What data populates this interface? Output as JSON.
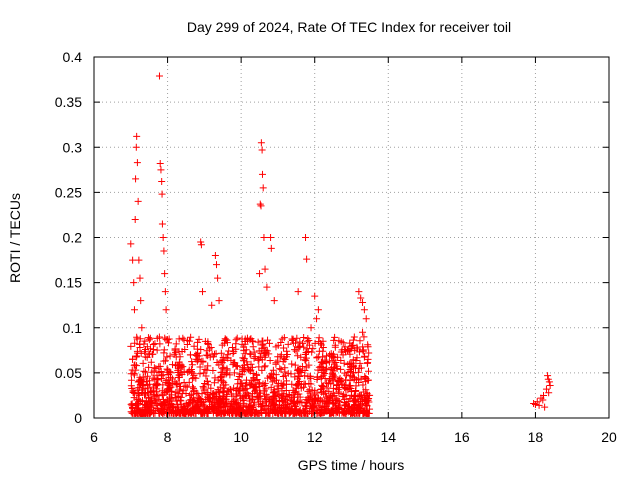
{
  "chart_data": {
    "type": "scatter",
    "title": "Day 299 of 2024, Rate Of TEC Index for receiver toil",
    "xlabel": "GPS time / hours",
    "ylabel": "ROTI / TECUs",
    "xlim": [
      6,
      20
    ],
    "ylim": [
      0,
      0.4
    ],
    "x_ticks": [
      6,
      8,
      10,
      12,
      14,
      16,
      18,
      20
    ],
    "x_tick_labels": [
      "6",
      "8",
      "10",
      "12",
      "14",
      "16",
      "18",
      "20"
    ],
    "y_ticks": [
      0,
      0.05,
      0.1,
      0.15,
      0.2,
      0.25,
      0.3,
      0.35,
      0.4
    ],
    "y_tick_labels": [
      "0",
      "0.05",
      "0.1",
      "0.15",
      "0.2",
      "0.25",
      "0.3",
      "0.35",
      "0.4"
    ],
    "grid": true,
    "marker": "plus",
    "color": "#ff0000",
    "series": [
      {
        "name": "ROTI",
        "points": [
          [
            7.0,
            0.193
          ],
          [
            7.05,
            0.175
          ],
          [
            7.08,
            0.15
          ],
          [
            7.1,
            0.12
          ],
          [
            7.12,
            0.22
          ],
          [
            7.13,
            0.265
          ],
          [
            7.15,
            0.3
          ],
          [
            7.16,
            0.312
          ],
          [
            7.18,
            0.283
          ],
          [
            7.2,
            0.24
          ],
          [
            7.22,
            0.175
          ],
          [
            7.25,
            0.155
          ],
          [
            7.27,
            0.13
          ],
          [
            7.3,
            0.1
          ],
          [
            7.78,
            0.379
          ],
          [
            7.8,
            0.282
          ],
          [
            7.82,
            0.275
          ],
          [
            7.84,
            0.262
          ],
          [
            7.85,
            0.248
          ],
          [
            7.86,
            0.215
          ],
          [
            7.88,
            0.2
          ],
          [
            7.9,
            0.185
          ],
          [
            7.92,
            0.16
          ],
          [
            7.94,
            0.14
          ],
          [
            7.96,
            0.12
          ],
          [
            8.9,
            0.195
          ],
          [
            8.92,
            0.192
          ],
          [
            8.95,
            0.14
          ],
          [
            9.3,
            0.18
          ],
          [
            9.33,
            0.17
          ],
          [
            9.36,
            0.155
          ],
          [
            9.4,
            0.13
          ],
          [
            9.2,
            0.125
          ],
          [
            10.55,
            0.305
          ],
          [
            10.57,
            0.297
          ],
          [
            10.58,
            0.27
          ],
          [
            10.6,
            0.255
          ],
          [
            10.52,
            0.237
          ],
          [
            10.54,
            0.235
          ],
          [
            10.62,
            0.2
          ],
          [
            10.8,
            0.2
          ],
          [
            10.82,
            0.188
          ],
          [
            10.65,
            0.165
          ],
          [
            10.5,
            0.16
          ],
          [
            10.7,
            0.145
          ],
          [
            10.9,
            0.13
          ],
          [
            11.75,
            0.2
          ],
          [
            11.78,
            0.176
          ],
          [
            11.55,
            0.14
          ],
          [
            12.0,
            0.135
          ],
          [
            12.1,
            0.12
          ],
          [
            12.05,
            0.11
          ],
          [
            11.9,
            0.1
          ],
          [
            13.2,
            0.14
          ],
          [
            13.25,
            0.133
          ],
          [
            13.3,
            0.128
          ],
          [
            13.35,
            0.12
          ],
          [
            13.4,
            0.11
          ],
          [
            13.3,
            0.095
          ],
          [
            13.45,
            0.065
          ],
          [
            17.95,
            0.016
          ],
          [
            18.0,
            0.015
          ],
          [
            18.05,
            0.018
          ],
          [
            18.1,
            0.014
          ],
          [
            18.15,
            0.022
          ],
          [
            18.2,
            0.02
          ],
          [
            18.22,
            0.025
          ],
          [
            18.25,
            0.012
          ],
          [
            18.3,
            0.032
          ],
          [
            18.33,
            0.047
          ],
          [
            18.35,
            0.043
          ],
          [
            18.38,
            0.04
          ],
          [
            18.4,
            0.036
          ],
          [
            18.36,
            0.028
          ]
        ],
        "dense_band": {
          "note": "dense cloud of points between 7.0 and 13.5 h",
          "x_range": [
            7.0,
            13.5
          ],
          "y_range": [
            0.005,
            0.09
          ]
        }
      }
    ]
  }
}
